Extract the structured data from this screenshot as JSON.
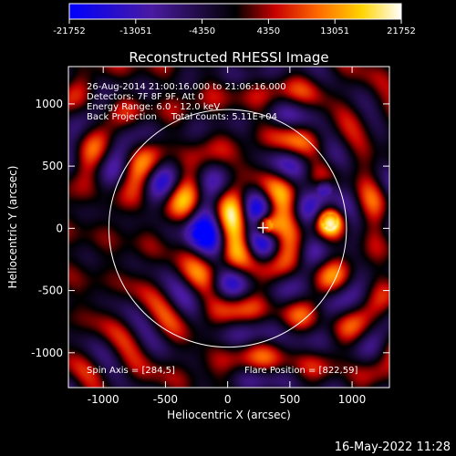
{
  "chart_data": {
    "type": "heatmap",
    "title": "Reconstructed RHESSI Image",
    "xlabel": "Heliocentric X (arcsec)",
    "ylabel": "Heliocentric Y (arcsec)",
    "xlim": [
      -1280,
      1300
    ],
    "ylim": [
      -1280,
      1300
    ],
    "xticks": [
      -1000,
      -500,
      0,
      500,
      1000
    ],
    "yticks": [
      -1000,
      -500,
      0,
      500,
      1000
    ],
    "colorbar": {
      "min": -21752,
      "max": 21752,
      "ticks": [
        -21752,
        -13051,
        -4350,
        4350,
        13051,
        21752
      ],
      "colors": [
        "#0000ff",
        "#4a1aa0",
        "#000000",
        "#c80000",
        "#ff6a00",
        "#ffd400",
        "#ffffff"
      ]
    },
    "annotations": [
      "26-Aug-2014 21:00:16.000 to 21:06:16.000",
      "Detectors: 7F 8F 9F, Att 0",
      "Energy Range: 6.0 - 12.0 keV",
      "Back Projection     Total counts: 5.11E+04"
    ],
    "spin_axis_label": "Spin Axis = [284,5]",
    "flare_position_label": "Flare Position = [822,59]",
    "spin_axis": [
      284,
      5
    ],
    "flare_position": [
      822,
      59
    ],
    "solar_limb_radius_arcsec": 955,
    "sources": [
      {
        "x": 822,
        "y": 59,
        "intensity": 21752
      },
      {
        "x": 300,
        "y": 20,
        "intensity": 17000
      },
      {
        "x": -250,
        "y": -50,
        "intensity": -21752
      },
      {
        "x": 780,
        "y": 320,
        "intensity": -13051
      }
    ]
  },
  "footer": {
    "timestamp": "16-May-2022 11:28"
  }
}
